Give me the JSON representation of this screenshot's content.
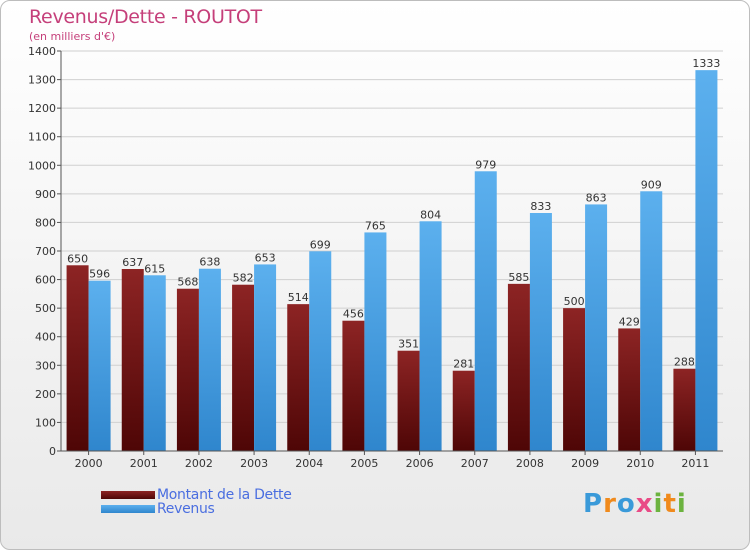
{
  "chart_data": {
    "type": "bar",
    "title": "Revenus/Dette - ROUTOT",
    "subtitle": "(en milliers d'€)",
    "categories": [
      "2000",
      "2001",
      "2002",
      "2003",
      "2004",
      "2005",
      "2006",
      "2007",
      "2008",
      "2009",
      "2010",
      "2011"
    ],
    "series": [
      {
        "name": "Montant de la Dette",
        "color": "#7a1515",
        "values": [
          650,
          637,
          568,
          582,
          514,
          456,
          351,
          281,
          585,
          500,
          429,
          288
        ]
      },
      {
        "name": "Revenus",
        "color": "#4ea3e6",
        "values": [
          596,
          615,
          638,
          653,
          699,
          765,
          804,
          979,
          833,
          863,
          909,
          1333
        ]
      }
    ],
    "ylim": [
      0,
      1400
    ],
    "yticks": [
      0,
      100,
      200,
      300,
      400,
      500,
      600,
      700,
      800,
      900,
      1000,
      1100,
      1200,
      1300,
      1400
    ],
    "grid": true,
    "legend": "bottom-left"
  },
  "branding": {
    "logo_text": "Proxiti",
    "logo_letters": [
      {
        "ch": "P",
        "color": "#3a9ad9"
      },
      {
        "ch": "r",
        "color": "#f08a1c"
      },
      {
        "ch": "o",
        "color": "#3a9ad9"
      },
      {
        "ch": "x",
        "color": "#e94b86"
      },
      {
        "ch": "i",
        "color": "#6cb33f"
      },
      {
        "ch": "t",
        "color": "#f08a1c"
      },
      {
        "ch": "i",
        "color": "#6cb33f"
      }
    ]
  }
}
